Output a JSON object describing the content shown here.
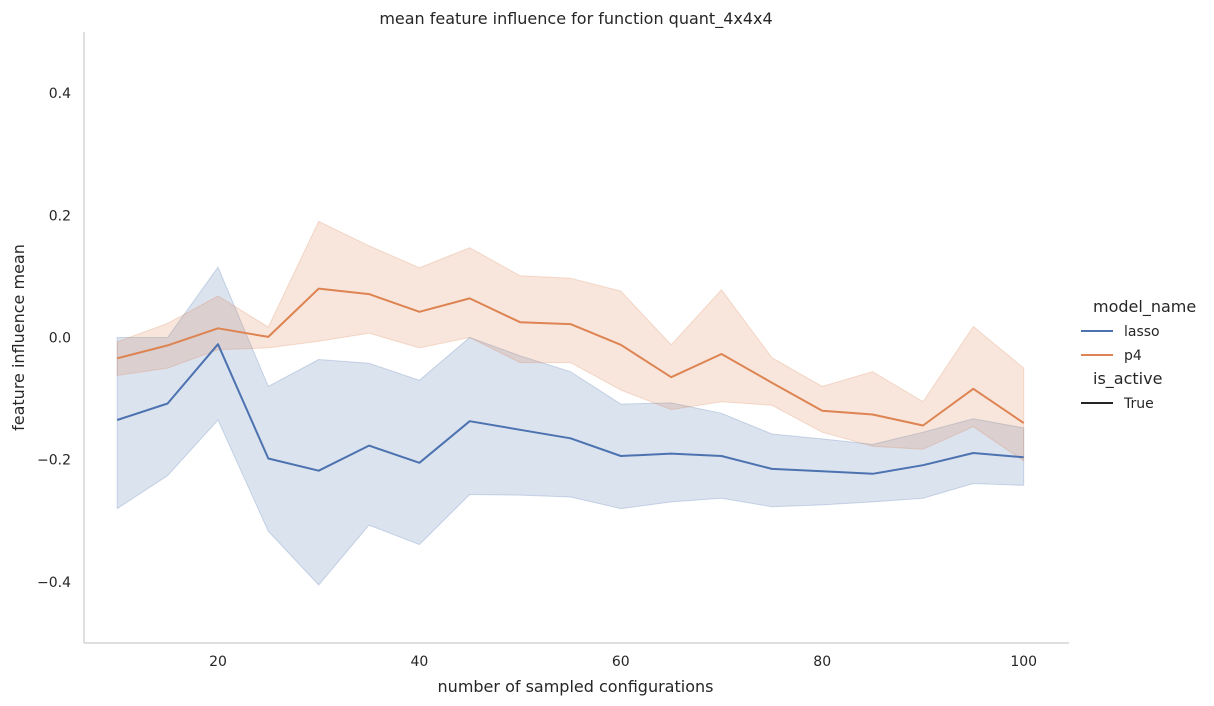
{
  "chart_data": {
    "type": "line",
    "title": "mean feature influence for function quant_4x4x4",
    "xlabel": "number of sampled configurations",
    "ylabel": "feature influence mean",
    "xlim": [
      6.7,
      104.5
    ],
    "ylim": [
      -0.5,
      0.5
    ],
    "xticks": [
      20,
      40,
      60,
      80,
      100
    ],
    "yticks": [
      -0.4,
      -0.2,
      0.0,
      0.2,
      0.4
    ],
    "ytick_labels": [
      "−0.4",
      "−0.2",
      "0.0",
      "0.2",
      "0.4"
    ],
    "grid": false,
    "legend": {
      "placement": "right",
      "groups": [
        {
          "title": "model_name",
          "entries": [
            {
              "label": "lasso",
              "color": "#4c72b0"
            },
            {
              "label": "p4",
              "color": "#dd8452"
            }
          ]
        },
        {
          "title": "is_active",
          "entries": [
            {
              "label": "True",
              "color": "#262626"
            }
          ]
        }
      ]
    },
    "x": [
      10,
      15,
      20,
      25,
      30,
      35,
      40,
      45,
      50,
      55,
      60,
      65,
      70,
      75,
      80,
      85,
      90,
      95,
      100
    ],
    "series": [
      {
        "name": "lasso",
        "color": "#4c72b0",
        "values": [
          -0.135,
          -0.108,
          -0.011,
          -0.198,
          -0.218,
          -0.177,
          -0.205,
          -0.137,
          -0.151,
          -0.165,
          -0.194,
          -0.19,
          -0.194,
          -0.215,
          -0.219,
          -0.223,
          -0.209,
          -0.189,
          -0.196
        ],
        "ci_low": [
          -0.28,
          -0.226,
          -0.135,
          -0.317,
          -0.405,
          -0.307,
          -0.339,
          -0.257,
          -0.258,
          -0.261,
          -0.28,
          -0.269,
          -0.263,
          -0.277,
          -0.274,
          -0.269,
          -0.263,
          -0.239,
          -0.242
        ],
        "ci_high": [
          0.0,
          0.0,
          0.115,
          -0.08,
          -0.036,
          -0.042,
          -0.07,
          0.0,
          -0.03,
          -0.056,
          -0.109,
          -0.107,
          -0.124,
          -0.158,
          -0.166,
          -0.175,
          -0.155,
          -0.133,
          -0.148
        ]
      },
      {
        "name": "p4",
        "color": "#dd8452",
        "values": [
          -0.034,
          -0.013,
          0.015,
          0.001,
          0.08,
          0.071,
          0.042,
          0.064,
          0.025,
          0.022,
          -0.012,
          -0.065,
          -0.027,
          -0.074,
          -0.12,
          -0.126,
          -0.144,
          -0.084,
          -0.14
        ],
        "ci_low": [
          -0.062,
          -0.05,
          -0.02,
          -0.017,
          -0.006,
          0.007,
          -0.017,
          0.0,
          -0.041,
          -0.041,
          -0.086,
          -0.118,
          -0.105,
          -0.111,
          -0.155,
          -0.178,
          -0.183,
          -0.146,
          -0.202
        ],
        "ci_high": [
          -0.007,
          0.023,
          0.068,
          0.017,
          0.19,
          0.15,
          0.114,
          0.147,
          0.101,
          0.097,
          0.076,
          -0.012,
          0.078,
          -0.033,
          -0.08,
          -0.056,
          -0.105,
          0.018,
          -0.05
        ]
      }
    ]
  }
}
